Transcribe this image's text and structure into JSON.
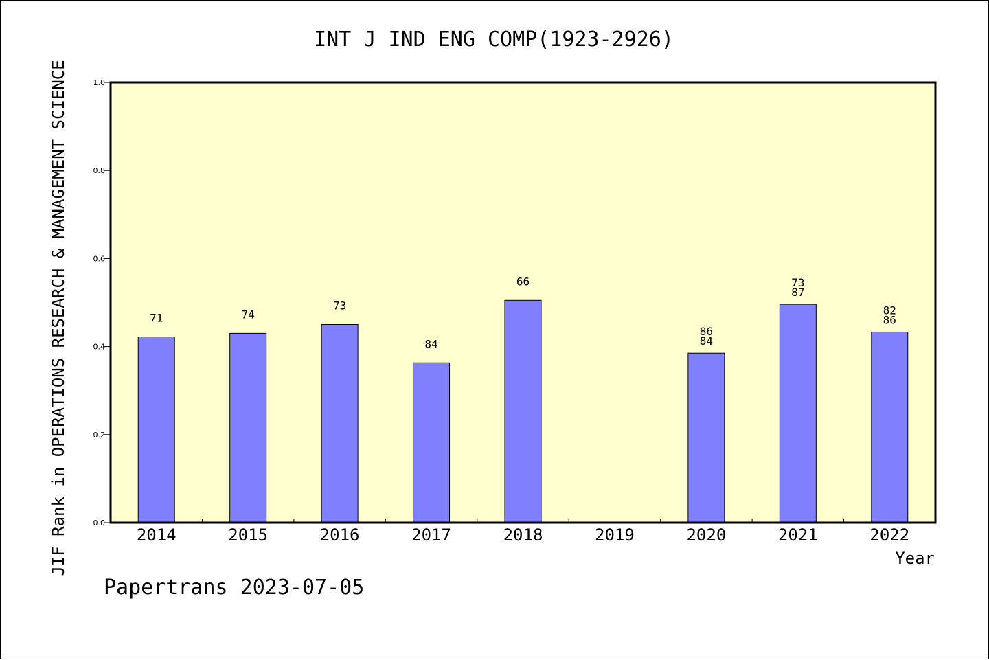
{
  "chart_data": {
    "type": "bar",
    "title": "INT J IND ENG COMP(1923-2926)",
    "xlabel": "Year",
    "ylabel": "JIF Rank in OPERATIONS RESEARCH & MANAGEMENT SCIENCE",
    "ylim": [
      0,
      1.0
    ],
    "yticks": [
      "0.0",
      "0.2",
      "0.4",
      "0.6",
      "0.8",
      "1.0"
    ],
    "categories": [
      "2014",
      "2015",
      "2016",
      "2017",
      "2018",
      "2019",
      "2020",
      "2021",
      "2022"
    ],
    "values": [
      0.422,
      0.43,
      0.45,
      0.363,
      0.505,
      null,
      0.385,
      0.496,
      0.433
    ],
    "bar_labels": [
      [
        "71"
      ],
      [
        "74"
      ],
      [
        "73"
      ],
      [
        "84"
      ],
      [
        "66"
      ],
      [],
      [
        "86",
        "84"
      ],
      [
        "73",
        "87"
      ],
      [
        "82",
        "86"
      ]
    ],
    "grid": false,
    "footer": "Papertrans 2023-07-05",
    "colors": {
      "plot_background": "#ffffd0",
      "bar_fill": "#8080ff",
      "bar_stroke": "#000000"
    }
  }
}
